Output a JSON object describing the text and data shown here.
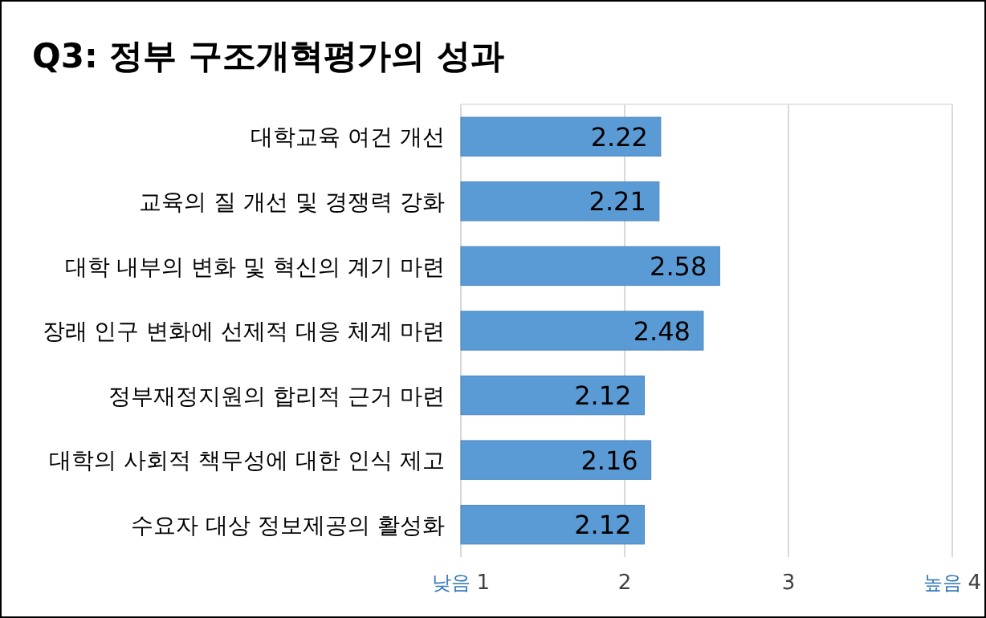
{
  "chart_data": {
    "type": "bar",
    "orientation": "horizontal",
    "title": "Q3: 정부 구조개혁평가의  성과",
    "categories": [
      "대학교육 여건 개선",
      "교육의 질 개선 및 경쟁력 강화",
      "대학 내부의 변화 및 혁신의 계기 마련",
      "장래 인구 변화에 선제적 대응 체계 마련",
      "정부재정지원의 합리적 근거 마련",
      "대학의 사회적 책무성에 대한 인식 제고",
      "수요자 대상 정보제공의 활성화"
    ],
    "values": [
      2.22,
      2.21,
      2.58,
      2.48,
      2.12,
      2.16,
      2.12
    ],
    "color": "#5b9bd5",
    "xlim": [
      1,
      4
    ],
    "xticks": [
      {
        "value": 1,
        "label": "낮음 1"
      },
      2,
      3,
      {
        "value": 4,
        "label": "높음 4"
      }
    ],
    "grid": "x",
    "data_labels": true
  }
}
